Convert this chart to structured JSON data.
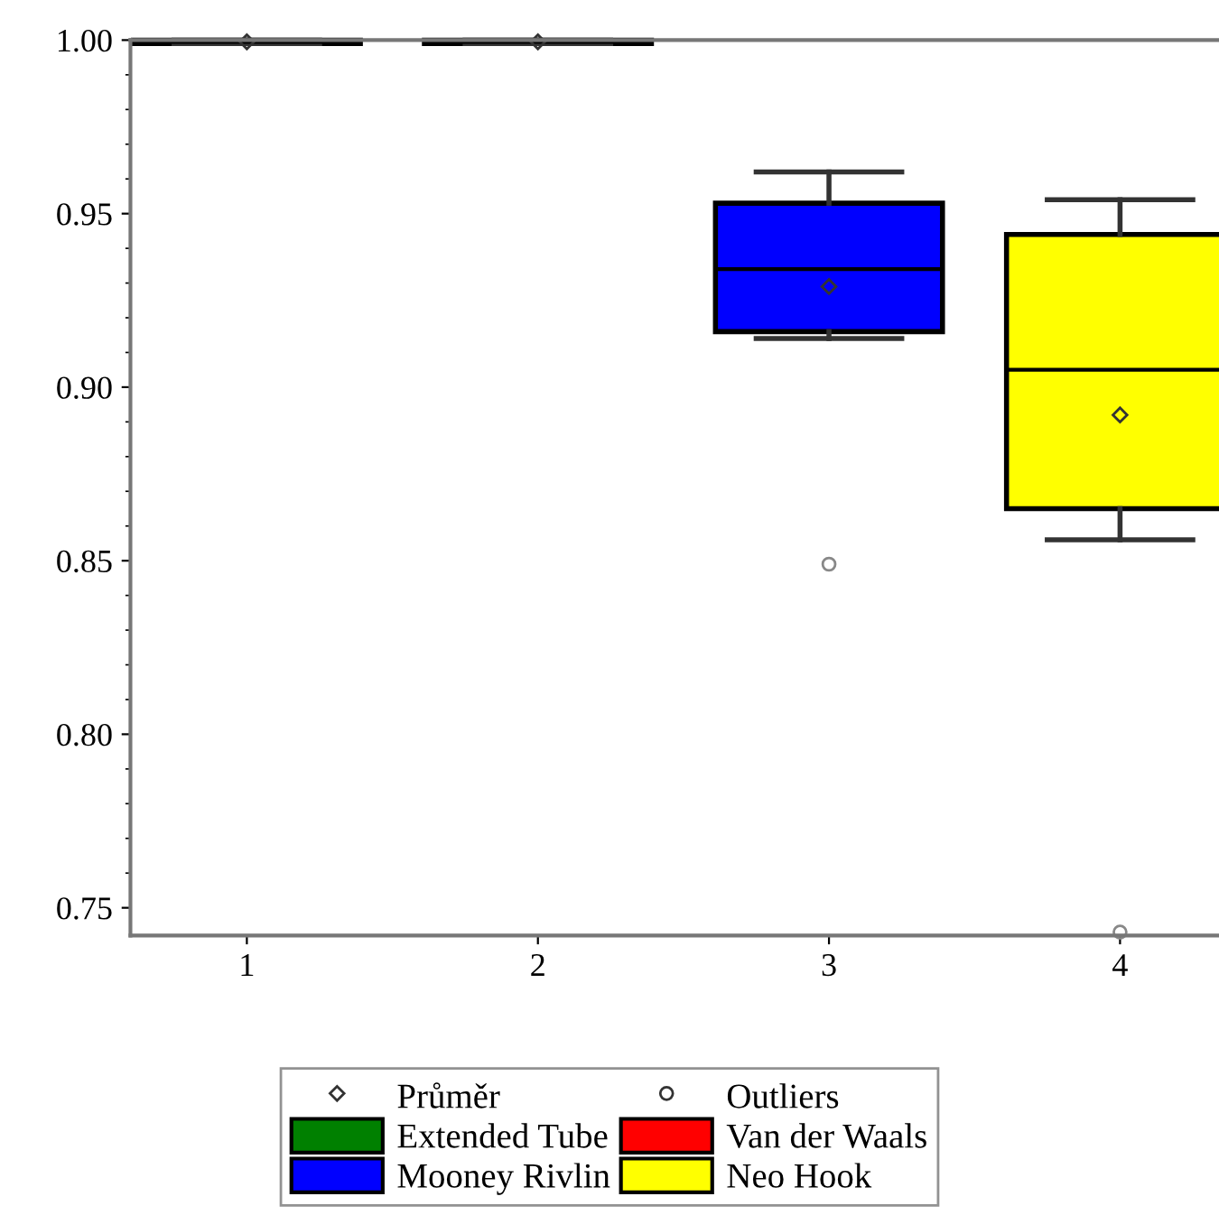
{
  "chart_data": {
    "type": "box",
    "categories": [
      "1",
      "2",
      "3",
      "4"
    ],
    "series": [
      {
        "name": "Extended Tube",
        "color": "#008000",
        "boxes": [
          {
            "low": 0.999,
            "q1": 0.999,
            "median": 0.9995,
            "q3": 1.0,
            "high": 1.0,
            "mean": 0.9995
          },
          null,
          null,
          null
        ]
      },
      {
        "name": "Van der Waals",
        "color": "#ff0000",
        "boxes": [
          null,
          {
            "low": 0.999,
            "q1": 0.999,
            "median": 0.9995,
            "q3": 1.0,
            "high": 1.0,
            "mean": 0.9995
          },
          null,
          null
        ]
      },
      {
        "name": "Mooney Rivlin",
        "color": "#0000ff",
        "boxes": [
          null,
          null,
          {
            "low": 0.914,
            "q1": 0.916,
            "median": 0.934,
            "q3": 0.953,
            "high": 0.962,
            "mean": 0.929,
            "outliers": [
              0.849
            ]
          },
          null
        ]
      },
      {
        "name": "Neo Hook",
        "color": "#ffff00",
        "boxes": [
          null,
          null,
          null,
          {
            "low": 0.856,
            "q1": 0.865,
            "median": 0.905,
            "q3": 0.944,
            "high": 0.954,
            "mean": 0.892,
            "outliers": [
              0.743
            ]
          }
        ]
      }
    ],
    "annotations": [
      "Průměr",
      "Outliers"
    ],
    "ylim": [
      0.742,
      1.0
    ],
    "yticks": [
      {
        "value": 0.75,
        "label": "0.75"
      },
      {
        "value": 0.8,
        "label": "0.80"
      },
      {
        "value": 0.85,
        "label": "0.85"
      },
      {
        "value": 0.9,
        "label": "0.90"
      },
      {
        "value": 0.95,
        "label": "0.95"
      },
      {
        "value": 1.0,
        "label": "1.00"
      }
    ],
    "grid": false,
    "legend": "bottom"
  }
}
